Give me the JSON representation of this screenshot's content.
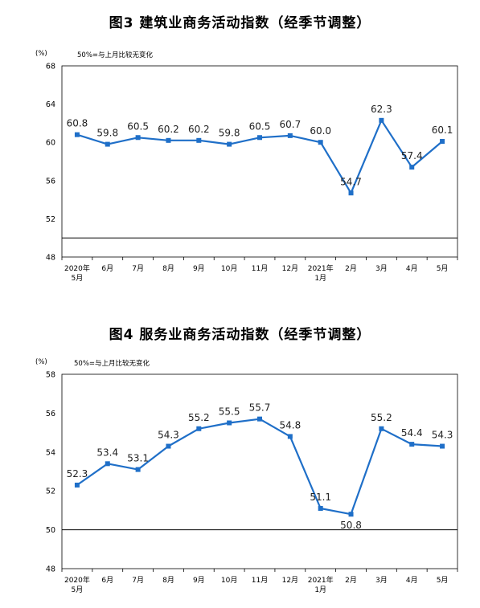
{
  "chart_data": [
    {
      "type": "line",
      "title": "图3  建筑业商务活动指数（经季节调整）",
      "unit_label": "(%)",
      "note": "50%=与上月比较无变化",
      "categories": [
        [
          "2020年",
          "5月"
        ],
        [
          "6月"
        ],
        [
          "7月"
        ],
        [
          "8月"
        ],
        [
          "9月"
        ],
        [
          "10月"
        ],
        [
          "11月"
        ],
        [
          "12月"
        ],
        [
          "2021年",
          "1月"
        ],
        [
          "2月"
        ],
        [
          "3月"
        ],
        [
          "4月"
        ],
        [
          "5月"
        ]
      ],
      "values": [
        60.8,
        59.8,
        60.5,
        60.2,
        60.2,
        59.8,
        60.5,
        60.7,
        60.0,
        54.7,
        62.3,
        57.4,
        60.1
      ],
      "data_labels": [
        "60.8",
        "59.8",
        "60.5",
        "60.2",
        "60.2",
        "59.8",
        "60.5",
        "60.7",
        "60.0",
        "54.7",
        "62.3",
        "57.4",
        "60.1"
      ],
      "label_below": [
        false,
        false,
        false,
        false,
        false,
        false,
        false,
        false,
        false,
        false,
        false,
        false,
        false
      ],
      "y_ticks": [
        "68",
        "64",
        "60",
        "56",
        "52",
        "48"
      ],
      "y_tick_values": [
        68,
        64,
        60,
        56,
        52,
        48
      ],
      "ylim": [
        48,
        68
      ],
      "reference_line": 50,
      "line_color": "#1f6fc8",
      "grid": false
    },
    {
      "type": "line",
      "title": "图4  服务业商务活动指数（经季节调整）",
      "unit_label": "(%)",
      "note": "50%=与上月比较无变化",
      "categories": [
        [
          "2020年",
          "5月"
        ],
        [
          "6月"
        ],
        [
          "7月"
        ],
        [
          "8月"
        ],
        [
          "9月"
        ],
        [
          "10月"
        ],
        [
          "11月"
        ],
        [
          "12月"
        ],
        [
          "2021年",
          "1月"
        ],
        [
          "2月"
        ],
        [
          "3月"
        ],
        [
          "4月"
        ],
        [
          "5月"
        ]
      ],
      "values": [
        52.3,
        53.4,
        53.1,
        54.3,
        55.2,
        55.5,
        55.7,
        54.8,
        51.1,
        50.8,
        55.2,
        54.4,
        54.3
      ],
      "data_labels": [
        "52.3",
        "53.4",
        "53.1",
        "54.3",
        "55.2",
        "55.5",
        "55.7",
        "54.8",
        "51.1",
        "50.8",
        "55.2",
        "54.4",
        "54.3"
      ],
      "label_below": [
        false,
        false,
        false,
        false,
        false,
        false,
        false,
        false,
        false,
        true,
        false,
        false,
        false
      ],
      "y_ticks": [
        "58",
        "56",
        "54",
        "52",
        "50",
        "48"
      ],
      "y_tick_values": [
        58,
        56,
        54,
        52,
        50,
        48
      ],
      "ylim": [
        48,
        58
      ],
      "reference_line": 50,
      "line_color": "#1f6fc8",
      "grid": false
    }
  ]
}
